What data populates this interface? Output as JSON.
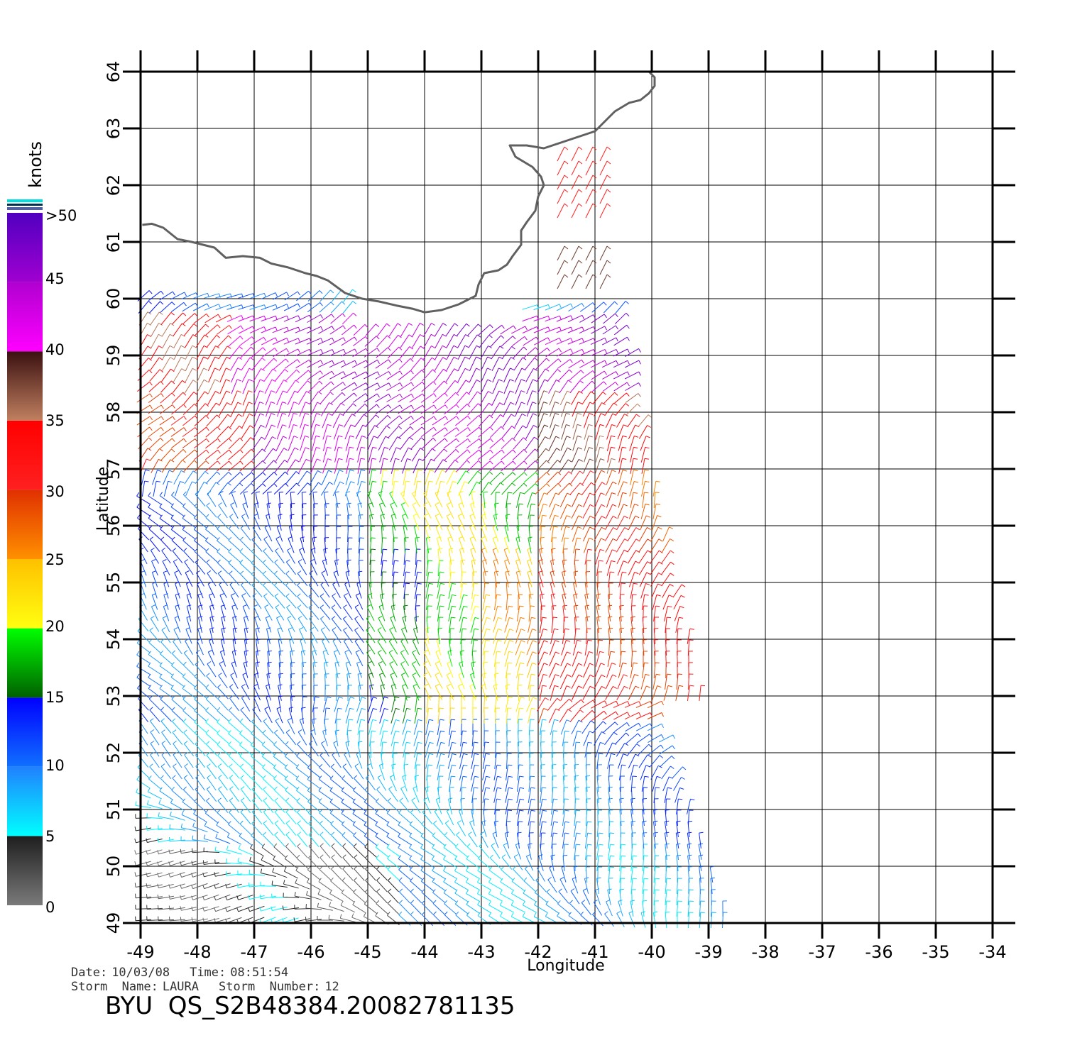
{
  "map": {
    "lon_range": [
      -49,
      -34
    ],
    "lat_range": [
      49,
      64
    ],
    "lon_ticks": [
      "-49",
      "-48",
      "-47",
      "-46",
      "-45",
      "-44",
      "-43",
      "-42",
      "-41",
      "-40",
      "-39",
      "-38",
      "-37",
      "-36",
      "-35",
      "-34"
    ],
    "lat_ticks": [
      "49",
      "50",
      "51",
      "52",
      "53",
      "54",
      "55",
      "56",
      "57",
      "58",
      "59",
      "60",
      "61",
      "62",
      "63",
      "64"
    ],
    "xlabel": "Longitude",
    "ylabel": "Latitude",
    "grid": true,
    "coast_color": "#606060"
  },
  "legend": {
    "unit": "knots",
    "labels": [
      "0",
      "5",
      "10",
      "15",
      "20",
      "25",
      "30",
      "35",
      "40",
      "45",
      ">50"
    ],
    "stops": [
      {
        "from": 0,
        "colors": [
          "#7a7a7a",
          "#1e1e1e"
        ]
      },
      {
        "from": 5,
        "colors": [
          "#00ffff",
          "#2080ff"
        ]
      },
      {
        "from": 10,
        "colors": [
          "#1070ff",
          "#0000ff"
        ]
      },
      {
        "from": 15,
        "colors": [
          "#006000",
          "#00ff00"
        ]
      },
      {
        "from": 20,
        "colors": [
          "#ffff10",
          "#ffc000"
        ]
      },
      {
        "from": 25,
        "colors": [
          "#ff9000",
          "#e03000"
        ]
      },
      {
        "from": 30,
        "colors": [
          "#ff2020",
          "#ff0000"
        ]
      },
      {
        "from": 35,
        "colors": [
          "#c08060",
          "#3a1010"
        ]
      },
      {
        "from": 40,
        "colors": [
          "#ff00ff",
          "#b000d0"
        ]
      },
      {
        "from": 45,
        "colors": [
          "#a000d0",
          "#5000c0"
        ]
      }
    ]
  },
  "info": {
    "date_label": "Date:",
    "date": "10/03/08",
    "time_label": "Time:",
    "time": "08:51:54",
    "storm_name_label": "Storm  Name:",
    "storm_name": "LAURA",
    "storm_number_label": "Storm  Number:",
    "storm_number": "12"
  },
  "title": "BYU  QS_S2B48384.20082781135"
}
